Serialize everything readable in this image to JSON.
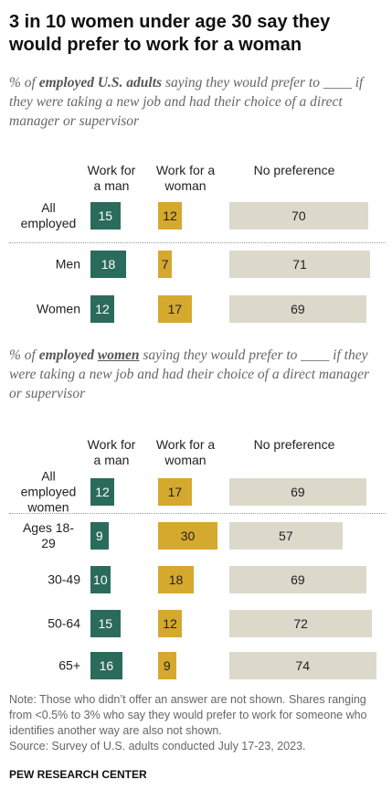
{
  "title": "3 in 10 women under age 30 say they would prefer to work for a woman",
  "chart_data": [
    {
      "type": "bar",
      "subtitle": [
        "% of ",
        "employed U.S. adults",
        " saying they would prefer to ____ if they were taking a new job and had their choice of a direct manager or supervisor"
      ],
      "categories": [
        "All employed",
        "Men",
        "Women"
      ],
      "series": [
        {
          "name": "Work for a man",
          "color": "#2b6b5b",
          "values": [
            15,
            18,
            12
          ]
        },
        {
          "name": "Work for a woman",
          "color": "#d5a82e",
          "values": [
            12,
            7,
            17
          ]
        },
        {
          "name": "No preference",
          "color": "#dcd9cb",
          "values": [
            70,
            71,
            69
          ]
        }
      ]
    },
    {
      "type": "bar",
      "subtitle": [
        "% of ",
        "employed ",
        "women",
        " saying they would prefer to ____ if they were taking a new job and had their choice of a direct manager or supervisor"
      ],
      "categories": [
        "All employed women",
        "Ages 18-29",
        "30-49",
        "50-64",
        "65+"
      ],
      "series": [
        {
          "name": "Work for a man",
          "color": "#2b6b5b",
          "values": [
            12,
            9,
            10,
            15,
            16
          ]
        },
        {
          "name": "Work for a woman",
          "color": "#d5a82e",
          "values": [
            17,
            30,
            18,
            12,
            9
          ]
        },
        {
          "name": "No preference",
          "color": "#dcd9cb",
          "values": [
            69,
            57,
            69,
            72,
            74
          ]
        }
      ]
    }
  ],
  "note": "Note: Those who didn’t offer an answer are not shown. Shares ranging from <0.5% to 3% who say they would prefer to work for someone who identifies another way are also not shown.",
  "source": "Source: Survey of U.S. adults conducted July 17-23, 2023.",
  "credit": "PEW RESEARCH CENTER"
}
